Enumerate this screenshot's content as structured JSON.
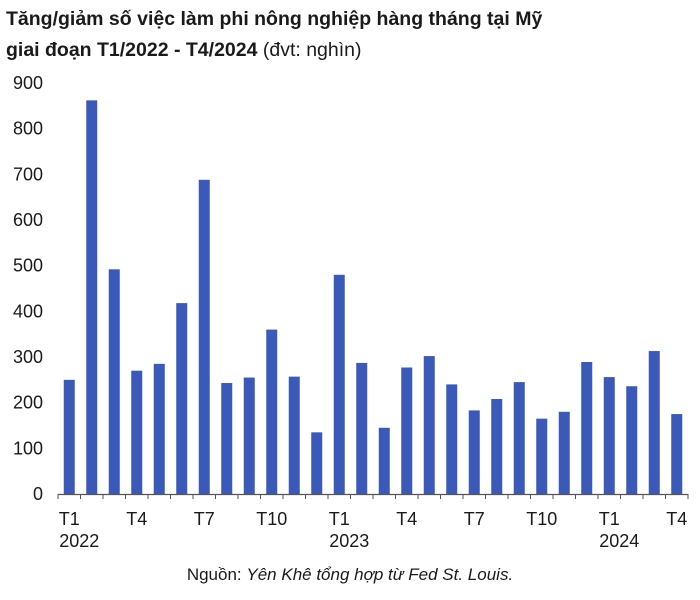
{
  "title_line1": "Tăng/giảm số việc làm phi nông nghiệp hàng tháng tại Mỹ",
  "title_line2": "giai đoạn T1/2022 - T4/2024",
  "title_unit": "(đvt: nghìn)",
  "source_prefix": "Nguồn:",
  "source_text": "Yên Khê tổng hợp từ Fed St. Louis.",
  "colors": {
    "bar": "#3a59b8",
    "axis": "#555555"
  },
  "chart_data": {
    "type": "bar",
    "title": "Tăng/giảm số việc làm phi nông nghiệp hàng tháng tại Mỹ giai đoạn T1/2022 - T4/2024 (đvt: nghìn)",
    "ylim": [
      0,
      900
    ],
    "yticks": [
      0,
      100,
      200,
      300,
      400,
      500,
      600,
      700,
      800,
      900
    ],
    "grid": false,
    "categories": [
      "T1/2022",
      "T2/2022",
      "T3/2022",
      "T4/2022",
      "T5/2022",
      "T6/2022",
      "T7/2022",
      "T8/2022",
      "T9/2022",
      "T10/2022",
      "T11/2022",
      "T12/2022",
      "T1/2023",
      "T2/2023",
      "T3/2023",
      "T4/2023",
      "T5/2023",
      "T6/2023",
      "T7/2023",
      "T8/2023",
      "T9/2023",
      "T10/2023",
      "T11/2023",
      "T12/2023",
      "T1/2024",
      "T2/2024",
      "T3/2024",
      "T4/2024"
    ],
    "values": [
      250,
      862,
      492,
      270,
      285,
      418,
      688,
      243,
      255,
      360,
      257,
      135,
      480,
      287,
      145,
      277,
      302,
      240,
      183,
      208,
      245,
      165,
      180,
      289,
      256,
      236,
      313,
      175
    ],
    "x_tick_labels": [
      {
        "index": 0,
        "label": "T1",
        "year": "2022"
      },
      {
        "index": 3,
        "label": "T4"
      },
      {
        "index": 6,
        "label": "T7"
      },
      {
        "index": 9,
        "label": "T10"
      },
      {
        "index": 12,
        "label": "T1",
        "year": "2023"
      },
      {
        "index": 15,
        "label": "T4"
      },
      {
        "index": 18,
        "label": "T7"
      },
      {
        "index": 21,
        "label": "T10"
      },
      {
        "index": 24,
        "label": "T1",
        "year": "2024"
      },
      {
        "index": 27,
        "label": "T4"
      }
    ]
  }
}
